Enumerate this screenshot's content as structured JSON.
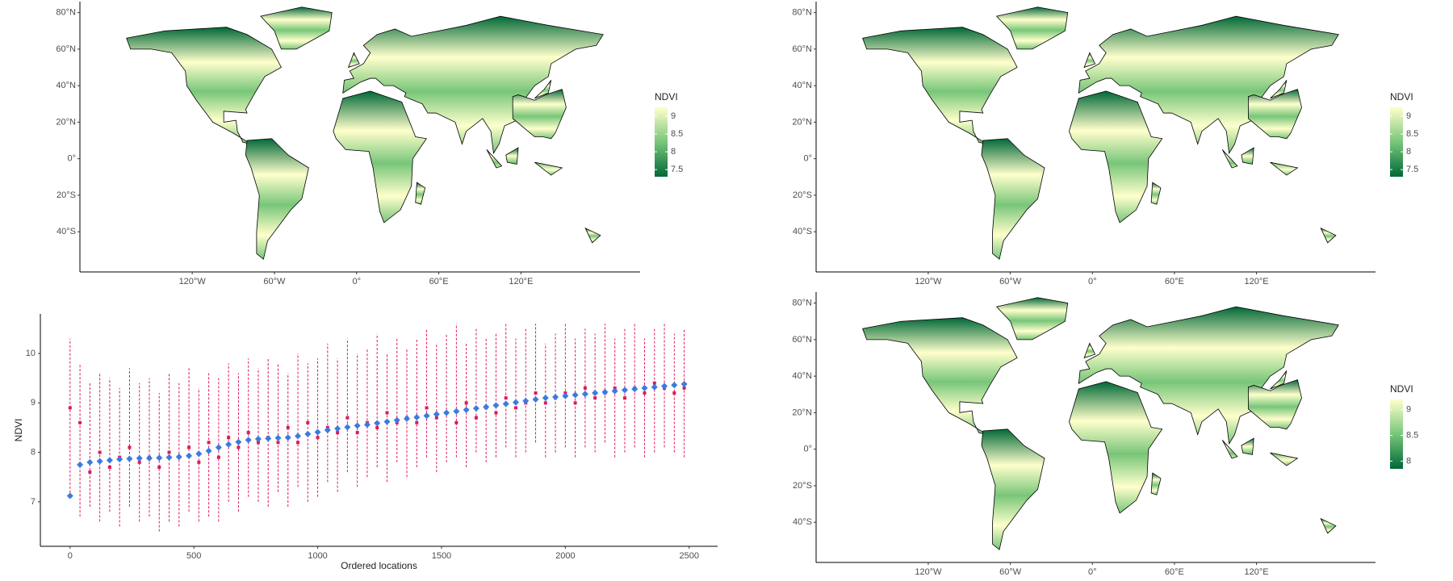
{
  "chart_data": [
    {
      "type": "map",
      "legend_title": "NDVI",
      "colorscale": [
        "#006837",
        "#78c679",
        "#ffffcc"
      ],
      "clim": [
        7.3,
        9.25
      ],
      "legend_ticks": [
        7.5,
        8,
        8.5,
        9
      ],
      "xlim": [
        -202,
        207
      ],
      "ylim": [
        -62,
        86
      ],
      "xticks": [
        {
          "value": -120,
          "label": "120°W"
        },
        {
          "value": -60,
          "label": "60°W"
        },
        {
          "value": 0,
          "label": "0°"
        },
        {
          "value": 60,
          "label": "60°E"
        },
        {
          "value": 120,
          "label": "120°E"
        }
      ],
      "yticks": [
        {
          "value": 80,
          "label": "80°N"
        },
        {
          "value": 60,
          "label": "60°N"
        },
        {
          "value": 40,
          "label": "40°N"
        },
        {
          "value": 20,
          "label": "20°N"
        },
        {
          "value": 0,
          "label": "0°"
        },
        {
          "value": -20,
          "label": "20°S"
        },
        {
          "value": -40,
          "label": "40°S"
        }
      ]
    },
    {
      "type": "map",
      "legend_title": "NDVI",
      "colorscale": [
        "#006837",
        "#78c679",
        "#ffffcc"
      ],
      "clim": [
        7.3,
        9.25
      ],
      "legend_ticks": [
        7.5,
        8,
        8.5,
        9
      ],
      "xlim": [
        -202,
        207
      ],
      "ylim": [
        -62,
        86
      ],
      "xticks": [
        {
          "value": -120,
          "label": "120°W"
        },
        {
          "value": -60,
          "label": "60°W"
        },
        {
          "value": 0,
          "label": "0°"
        },
        {
          "value": 60,
          "label": "60°E"
        },
        {
          "value": 120,
          "label": "120°E"
        }
      ],
      "yticks": [
        {
          "value": 80,
          "label": "80°N"
        },
        {
          "value": 60,
          "label": "60°N"
        },
        {
          "value": 40,
          "label": "40°N"
        },
        {
          "value": 20,
          "label": "20°N"
        },
        {
          "value": 0,
          "label": "0°"
        },
        {
          "value": -20,
          "label": "20°S"
        },
        {
          "value": -40,
          "label": "40°S"
        }
      ]
    },
    {
      "type": "errorbar",
      "y_label": "NDVI",
      "x_label": "Ordered locations",
      "xlim": [
        -120,
        2615
      ],
      "ylim": [
        6.1,
        10.8
      ],
      "xticks": [
        0,
        500,
        1000,
        1500,
        2000,
        2500
      ],
      "yticks": [
        7,
        8,
        9,
        10
      ],
      "x": [
        0,
        40,
        80,
        120,
        160,
        200,
        240,
        280,
        320,
        360,
        400,
        440,
        480,
        520,
        560,
        600,
        640,
        680,
        720,
        760,
        800,
        840,
        880,
        920,
        960,
        1000,
        1040,
        1080,
        1120,
        1160,
        1200,
        1240,
        1280,
        1320,
        1360,
        1400,
        1440,
        1480,
        1520,
        1560,
        1600,
        1640,
        1680,
        1720,
        1760,
        1800,
        1840,
        1880,
        1920,
        1960,
        2000,
        2040,
        2080,
        2120,
        2160,
        2200,
        2240,
        2280,
        2320,
        2360,
        2400,
        2440,
        2480
      ],
      "series": [
        {
          "color": "#e0185c",
          "values": [
            8.9,
            8.6,
            7.6,
            8.0,
            7.7,
            7.9,
            8.1,
            7.8,
            7.9,
            7.7,
            8.0,
            7.9,
            8.1,
            7.8,
            8.2,
            7.9,
            8.3,
            8.1,
            8.4,
            8.2,
            8.3,
            8.2,
            8.5,
            8.2,
            8.6,
            8.3,
            8.5,
            8.4,
            8.7,
            8.4,
            8.6,
            8.5,
            8.8,
            8.6,
            8.7,
            8.6,
            8.9,
            8.7,
            8.8,
            8.6,
            9.0,
            8.7,
            8.9,
            8.8,
            9.1,
            8.9,
            9.0,
            9.2,
            9.0,
            9.1,
            9.2,
            9.0,
            9.3,
            9.1,
            9.2,
            9.3,
            9.1,
            9.3,
            9.2,
            9.4,
            9.3,
            9.2,
            9.3
          ],
          "lower": [
            7.1,
            6.7,
            6.9,
            6.6,
            6.8,
            6.5,
            6.9,
            6.6,
            6.7,
            6.4,
            6.6,
            6.5,
            6.8,
            6.6,
            6.7,
            6.6,
            7.0,
            6.8,
            7.1,
            7.0,
            6.9,
            7.2,
            6.9,
            7.3,
            7.0,
            7.1,
            7.4,
            7.2,
            7.6,
            7.3,
            7.5,
            7.7,
            7.4,
            7.8,
            7.5,
            7.7,
            7.9,
            7.6,
            7.8,
            7.9,
            7.7,
            8.0,
            7.8,
            7.9,
            8.1,
            7.9,
            8.0,
            8.2,
            7.9,
            8.0,
            8.1,
            7.9,
            8.1,
            8.0,
            8.2,
            7.9,
            8.0,
            8.1,
            7.9,
            8.0,
            8.1,
            8.0,
            7.9
          ],
          "upper": [
            10.3,
            9.8,
            9.4,
            9.6,
            9.5,
            9.3,
            9.7,
            9.4,
            9.5,
            9.2,
            9.6,
            9.4,
            9.7,
            9.3,
            9.6,
            9.5,
            9.8,
            9.6,
            9.9,
            9.7,
            9.9,
            9.8,
            9.6,
            10.0,
            9.8,
            9.9,
            10.2,
            9.9,
            10.3,
            10.0,
            10.1,
            10.4,
            10.0,
            10.3,
            10.1,
            10.3,
            10.5,
            10.2,
            10.4,
            10.6,
            10.2,
            10.5,
            10.3,
            10.4,
            10.6,
            10.3,
            10.5,
            10.6,
            10.2,
            10.4,
            10.6,
            10.3,
            10.5,
            10.4,
            10.6,
            10.3,
            10.5,
            10.6,
            10.3,
            10.5,
            10.6,
            10.4,
            10.5
          ]
        },
        {
          "color": "#3a7be0",
          "values": [
            7.12,
            7.75,
            7.8,
            7.82,
            7.84,
            7.86,
            7.87,
            7.88,
            7.88,
            7.89,
            7.9,
            7.91,
            7.93,
            7.97,
            8.03,
            8.1,
            8.16,
            8.21,
            8.25,
            8.27,
            8.28,
            8.29,
            8.3,
            8.33,
            8.37,
            8.41,
            8.45,
            8.48,
            8.51,
            8.54,
            8.56,
            8.59,
            8.62,
            8.65,
            8.68,
            8.71,
            8.74,
            8.77,
            8.8,
            8.83,
            8.86,
            8.89,
            8.92,
            8.95,
            8.98,
            9.01,
            9.04,
            9.07,
            9.1,
            9.12,
            9.14,
            9.16,
            9.18,
            9.2,
            9.22,
            9.24,
            9.26,
            9.28,
            9.3,
            9.32,
            9.34,
            9.36,
            9.38
          ]
        }
      ]
    },
    {
      "type": "map",
      "legend_title": "NDVI",
      "colorscale": [
        "#006837",
        "#78c679",
        "#ffffcc"
      ],
      "clim": [
        7.85,
        9.2
      ],
      "legend_ticks": [
        8,
        8.5,
        9
      ],
      "xlim": [
        -202,
        207
      ],
      "ylim": [
        -62,
        86
      ],
      "xticks": [
        {
          "value": -120,
          "label": "120°W"
        },
        {
          "value": -60,
          "label": "60°W"
        },
        {
          "value": 0,
          "label": "0°"
        },
        {
          "value": 60,
          "label": "60°E"
        },
        {
          "value": 120,
          "label": "120°E"
        }
      ],
      "yticks": [
        {
          "value": 80,
          "label": "80°N"
        },
        {
          "value": 60,
          "label": "60°N"
        },
        {
          "value": 40,
          "label": "40°N"
        },
        {
          "value": 20,
          "label": "20°N"
        },
        {
          "value": 0,
          "label": "0°"
        },
        {
          "value": -20,
          "label": "20°S"
        },
        {
          "value": -40,
          "label": "40°S"
        }
      ]
    }
  ]
}
